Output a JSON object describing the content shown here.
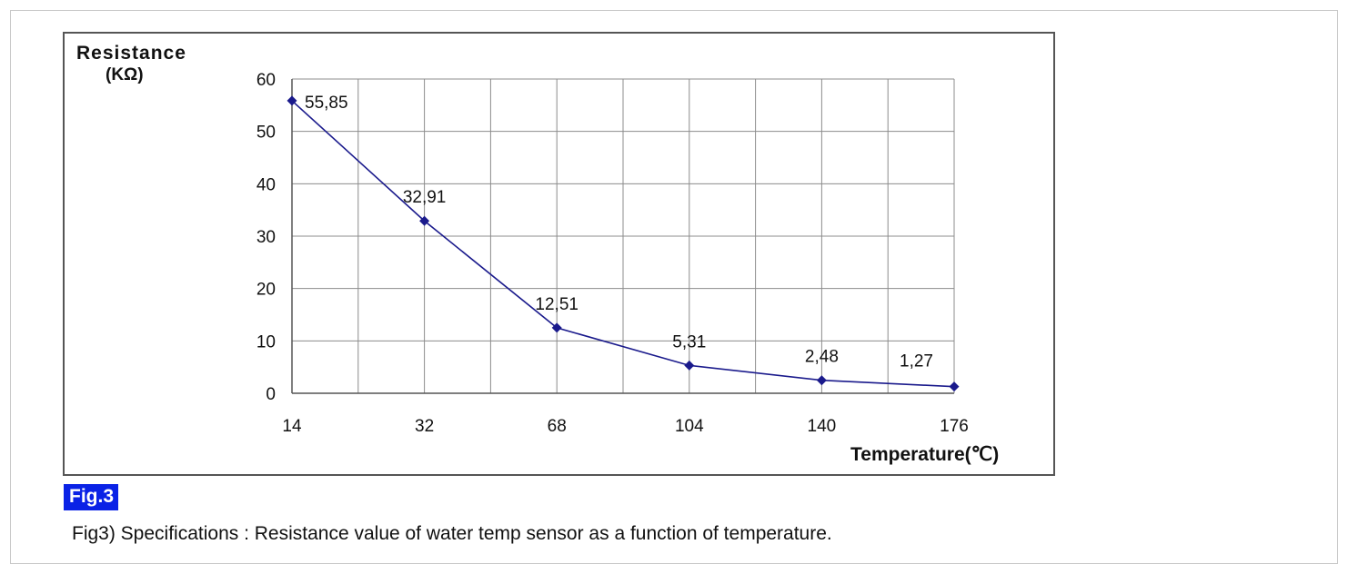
{
  "figure": {
    "badge": "Fig.3",
    "caption": "Fig3) Specifications : Resistance value of water temp sensor as a function of temperature."
  },
  "chart_data": {
    "type": "line",
    "ylabel": "Resistance",
    "yunit": "(KΩ)",
    "xlabel": "Temperature(℃)",
    "categories": [
      "14",
      "32",
      "68",
      "104",
      "140",
      "176"
    ],
    "x_minor_gridlines": true,
    "ylim": [
      0,
      60
    ],
    "yticks": [
      0,
      10,
      20,
      30,
      40,
      50,
      60
    ],
    "grid": true,
    "series": [
      {
        "values": [
          55.85,
          32.91,
          12.51,
          5.31,
          2.48,
          1.27
        ],
        "labels": [
          "55,85",
          "32,91",
          "12,51",
          "5,31",
          "2,48",
          "1,27"
        ],
        "color": "#1a1a8c",
        "marker": "diamond"
      }
    ]
  }
}
